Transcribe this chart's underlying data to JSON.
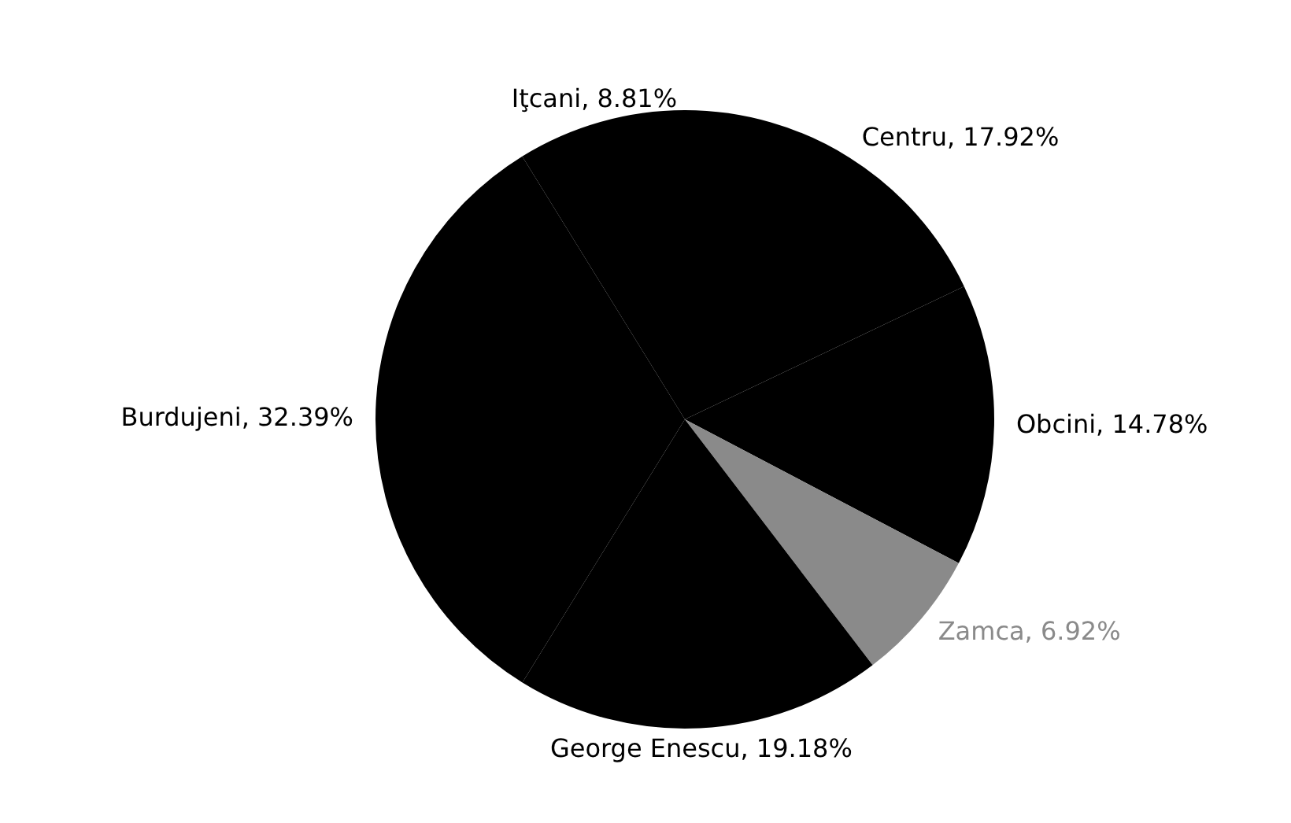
{
  "chart_data": {
    "type": "pie",
    "categories": [
      "Centru",
      "Obcini",
      "Zamca",
      "George Enescu",
      "Burdujeni",
      "Iţcani"
    ],
    "values": [
      17.92,
      14.78,
      6.92,
      19.18,
      32.39,
      8.81
    ],
    "colors": [
      "#000000",
      "#000000",
      "#8a8a8a",
      "#000000",
      "#000000",
      "#000000"
    ],
    "value_labels": [
      "17.92%",
      "14.78%",
      "6.92%",
      "19.18%",
      "32.39%",
      "8.81%"
    ],
    "legend": false
  }
}
